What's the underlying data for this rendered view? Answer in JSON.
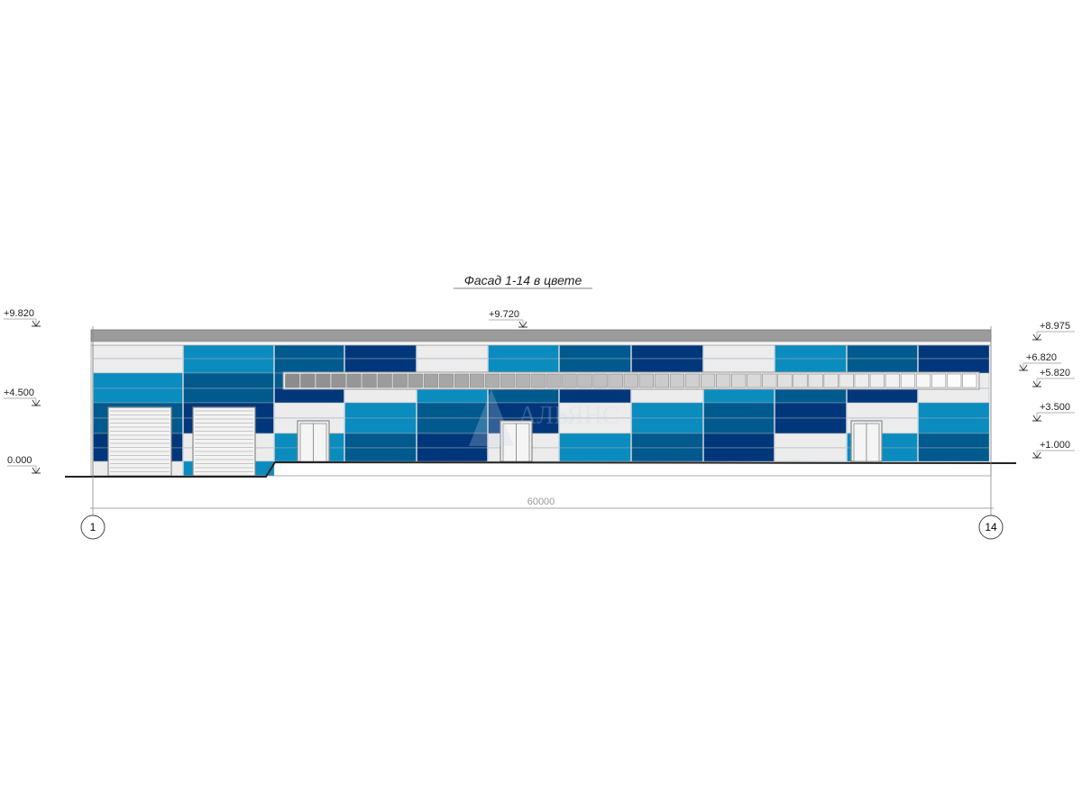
{
  "title": "Фасад 1-14 в цвете",
  "dimension": "60000",
  "axes": [
    "1",
    "14"
  ],
  "levels_left": [
    "+9.820",
    "+4.500",
    "0.000"
  ],
  "level_center": "+9.720",
  "levels_right": [
    "+8.975",
    "+6.820",
    "+5.820",
    "+3.500",
    "+1.000"
  ],
  "watermark": "АЛЬЯНС",
  "palette": {
    "W": "#ececec",
    "C": "#0a8cbf",
    "M": "#005a8e",
    "D": "#00377a",
    "parapet": "#9b9b9b"
  },
  "facade": {
    "bays": [
      [
        "W",
        "W",
        "C",
        "C",
        "M",
        "M",
        "D",
        "D",
        "W"
      ],
      [
        "C",
        "C",
        "M",
        "M",
        "D",
        "D",
        "W",
        "W",
        "C"
      ],
      [
        "M",
        "M",
        "M",
        "D",
        "W",
        "W",
        "C",
        "C"
      ],
      [
        "D",
        "D",
        "D",
        "W",
        "C",
        "C",
        "M",
        "M"
      ],
      [
        "W",
        "W",
        "W",
        "C",
        "M",
        "M",
        "D",
        "D"
      ],
      [
        "C",
        "C",
        "C",
        "M",
        "D",
        "D",
        "W",
        "W"
      ],
      [
        "M",
        "M",
        "M",
        "D",
        "W",
        "W",
        "C",
        "C"
      ],
      [
        "D",
        "D",
        "D",
        "W",
        "C",
        "C",
        "M",
        "M"
      ],
      [
        "W",
        "W",
        "W",
        "C",
        "M",
        "M",
        "D",
        "D"
      ],
      [
        "C",
        "C",
        "C",
        "M",
        "D",
        "D",
        "W",
        "W"
      ],
      [
        "M",
        "M",
        "M",
        "D",
        "W",
        "W",
        "C",
        "C"
      ],
      [
        "D",
        "D",
        "W",
        "W",
        "C",
        "C",
        "M",
        "M"
      ]
    ]
  }
}
